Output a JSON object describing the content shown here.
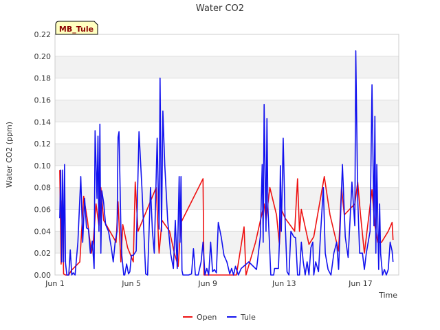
{
  "chart_data": {
    "type": "line",
    "title": "Water CO2",
    "xlabel": "Time",
    "ylabel": "Water CO2 (ppm)",
    "badge": "MB_Tule",
    "xlim": [
      1,
      19
    ],
    "ylim": [
      0,
      0.22
    ],
    "x_ticks": [
      {
        "value": 1,
        "label": "Jun 1"
      },
      {
        "value": 5,
        "label": "Jun 5"
      },
      {
        "value": 9,
        "label": "Jun 9"
      },
      {
        "value": 13,
        "label": "Jun 13"
      },
      {
        "value": 17,
        "label": "Jun 17"
      }
    ],
    "y_ticks": [
      {
        "value": 0.0,
        "label": "0.00"
      },
      {
        "value": 0.02,
        "label": "0.02"
      },
      {
        "value": 0.04,
        "label": "0.04"
      },
      {
        "value": 0.06,
        "label": "0.06"
      },
      {
        "value": 0.08,
        "label": "0.08"
      },
      {
        "value": 0.1,
        "label": "0.10"
      },
      {
        "value": 0.12,
        "label": "0.12"
      },
      {
        "value": 0.14,
        "label": "0.14"
      },
      {
        "value": 0.16,
        "label": "0.16"
      },
      {
        "value": 0.18,
        "label": "0.18"
      },
      {
        "value": 0.2,
        "label": "0.20"
      },
      {
        "value": 0.22,
        "label": "0.22"
      }
    ],
    "legend_position": "bottom-center",
    "series": [
      {
        "name": "Open",
        "color": "#ee1111",
        "points": [
          [
            1.25,
            0.096
          ],
          [
            1.32,
            0.01
          ],
          [
            1.38,
            0.068
          ],
          [
            1.45,
            0.001
          ],
          [
            1.55,
            0.0
          ],
          [
            1.72,
            0.0
          ],
          [
            1.85,
            0.004
          ],
          [
            2.3,
            0.012
          ],
          [
            2.5,
            0.072
          ],
          [
            2.7,
            0.05
          ],
          [
            2.9,
            0.02
          ],
          [
            3.0,
            0.03
          ],
          [
            3.15,
            0.065
          ],
          [
            3.3,
            0.045
          ],
          [
            3.4,
            0.08
          ],
          [
            3.55,
            0.05
          ],
          [
            4.2,
            0.03
          ],
          [
            4.3,
            0.067
          ],
          [
            4.45,
            0.012
          ],
          [
            4.55,
            0.046
          ],
          [
            4.8,
            0.025
          ],
          [
            5.1,
            0.012
          ],
          [
            5.2,
            0.085
          ],
          [
            5.35,
            0.04
          ],
          [
            6.3,
            0.08
          ],
          [
            6.45,
            0.02
          ],
          [
            6.6,
            0.05
          ],
          [
            7.0,
            0.04
          ],
          [
            7.25,
            0.02
          ],
          [
            7.45,
            0.008
          ],
          [
            7.6,
            0.048
          ],
          [
            8.75,
            0.088
          ],
          [
            8.8,
            0.0
          ],
          [
            9.05,
            0.0
          ],
          [
            10.5,
            0.0
          ],
          [
            10.9,
            0.044
          ],
          [
            11.0,
            0.0
          ],
          [
            11.5,
            0.03
          ],
          [
            11.95,
            0.065
          ],
          [
            12.05,
            0.05
          ],
          [
            12.25,
            0.08
          ],
          [
            12.6,
            0.055
          ],
          [
            12.75,
            0.028
          ],
          [
            12.85,
            0.06
          ],
          [
            13.05,
            0.052
          ],
          [
            13.55,
            0.04
          ],
          [
            13.7,
            0.088
          ],
          [
            13.8,
            0.04
          ],
          [
            13.9,
            0.06
          ],
          [
            14.3,
            0.028
          ],
          [
            14.55,
            0.035
          ],
          [
            15.1,
            0.09
          ],
          [
            15.4,
            0.055
          ],
          [
            15.85,
            0.022
          ],
          [
            16.0,
            0.08
          ],
          [
            16.15,
            0.055
          ],
          [
            16.7,
            0.065
          ],
          [
            16.85,
            0.085
          ],
          [
            17.0,
            0.055
          ],
          [
            17.2,
            0.02
          ],
          [
            17.6,
            0.078
          ],
          [
            17.75,
            0.045
          ],
          [
            17.9,
            0.03
          ],
          [
            18.1,
            0.03
          ],
          [
            18.45,
            0.04
          ],
          [
            18.65,
            0.048
          ],
          [
            18.7,
            0.032
          ]
        ]
      },
      {
        "name": "Tule",
        "color": "#1111ee",
        "points": [
          [
            1.25,
            0.052
          ],
          [
            1.3,
            0.096
          ],
          [
            1.35,
            0.012
          ],
          [
            1.4,
            0.096
          ],
          [
            1.45,
            0.012
          ],
          [
            1.5,
            0.101
          ],
          [
            1.55,
            0.011
          ],
          [
            1.62,
            0.0
          ],
          [
            1.72,
            0.0
          ],
          [
            1.8,
            0.023
          ],
          [
            1.88,
            0.0
          ],
          [
            1.95,
            0.002
          ],
          [
            2.05,
            0.0
          ],
          [
            2.2,
            0.03
          ],
          [
            2.35,
            0.09
          ],
          [
            2.45,
            0.03
          ],
          [
            2.55,
            0.07
          ],
          [
            2.65,
            0.043
          ],
          [
            2.75,
            0.042
          ],
          [
            2.85,
            0.02
          ],
          [
            2.95,
            0.031
          ],
          [
            3.05,
            0.006
          ],
          [
            3.1,
            0.132
          ],
          [
            3.2,
            0.07
          ],
          [
            3.25,
            0.127
          ],
          [
            3.3,
            0.04
          ],
          [
            3.35,
            0.138
          ],
          [
            3.4,
            0.02
          ],
          [
            3.45,
            0.077
          ],
          [
            3.55,
            0.066
          ],
          [
            3.65,
            0.046
          ],
          [
            3.8,
            0.04
          ],
          [
            3.95,
            0.025
          ],
          [
            4.05,
            0.012
          ],
          [
            4.15,
            0.03
          ],
          [
            4.25,
            0.04
          ],
          [
            4.3,
            0.126
          ],
          [
            4.35,
            0.131
          ],
          [
            4.45,
            0.044
          ],
          [
            4.5,
            0.018
          ],
          [
            4.6,
            0.0
          ],
          [
            4.65,
            0.0
          ],
          [
            4.75,
            0.01
          ],
          [
            4.85,
            0.001
          ],
          [
            4.92,
            0.003
          ],
          [
            5.0,
            0.018
          ],
          [
            5.1,
            0.018
          ],
          [
            5.25,
            0.022
          ],
          [
            5.4,
            0.131
          ],
          [
            5.55,
            0.08
          ],
          [
            5.75,
            0.001
          ],
          [
            5.85,
            0.0
          ],
          [
            6.0,
            0.08
          ],
          [
            6.1,
            0.04
          ],
          [
            6.2,
            0.02
          ],
          [
            6.35,
            0.125
          ],
          [
            6.45,
            0.042
          ],
          [
            6.5,
            0.18
          ],
          [
            6.58,
            0.04
          ],
          [
            6.65,
            0.15
          ],
          [
            6.75,
            0.1
          ],
          [
            6.9,
            0.05
          ],
          [
            7.05,
            0.02
          ],
          [
            7.2,
            0.006
          ],
          [
            7.3,
            0.05
          ],
          [
            7.4,
            0.006
          ],
          [
            7.5,
            0.09
          ],
          [
            7.55,
            0.03
          ],
          [
            7.6,
            0.09
          ],
          [
            7.65,
            0.004
          ],
          [
            7.7,
            0.0
          ],
          [
            8.0,
            0.0
          ],
          [
            8.15,
            0.001
          ],
          [
            8.25,
            0.024
          ],
          [
            8.35,
            0.0
          ],
          [
            8.5,
            0.0
          ],
          [
            8.65,
            0.012
          ],
          [
            8.75,
            0.03
          ],
          [
            8.85,
            0.0
          ],
          [
            8.95,
            0.006
          ],
          [
            9.05,
            0.0
          ],
          [
            9.15,
            0.03
          ],
          [
            9.25,
            0.003
          ],
          [
            9.35,
            0.005
          ],
          [
            9.45,
            0.002
          ],
          [
            9.55,
            0.048
          ],
          [
            9.7,
            0.035
          ],
          [
            9.85,
            0.018
          ],
          [
            10.0,
            0.012
          ],
          [
            10.15,
            0.001
          ],
          [
            10.25,
            0.006
          ],
          [
            10.35,
            0.0
          ],
          [
            10.45,
            0.008
          ],
          [
            10.6,
            0.0
          ],
          [
            10.75,
            0.006
          ],
          [
            11.15,
            0.012
          ],
          [
            11.55,
            0.005
          ],
          [
            11.75,
            0.035
          ],
          [
            11.85,
            0.101
          ],
          [
            11.9,
            0.03
          ],
          [
            11.95,
            0.156
          ],
          [
            12.05,
            0.04
          ],
          [
            12.1,
            0.143
          ],
          [
            12.15,
            0.062
          ],
          [
            12.3,
            0.0
          ],
          [
            12.45,
            0.0
          ],
          [
            12.5,
            0.006
          ],
          [
            12.7,
            0.006
          ],
          [
            12.75,
            0.03
          ],
          [
            12.8,
            0.1
          ],
          [
            12.85,
            0.04
          ],
          [
            12.95,
            0.125
          ],
          [
            13.05,
            0.05
          ],
          [
            13.15,
            0.003
          ],
          [
            13.25,
            0.0
          ],
          [
            13.35,
            0.04
          ],
          [
            13.5,
            0.035
          ],
          [
            13.6,
            0.034
          ],
          [
            13.7,
            0.0
          ],
          [
            13.8,
            0.0
          ],
          [
            13.9,
            0.03
          ],
          [
            14.0,
            0.012
          ],
          [
            14.1,
            0.0
          ],
          [
            14.2,
            0.012
          ],
          [
            14.3,
            0.0
          ],
          [
            14.4,
            0.025
          ],
          [
            14.5,
            0.03
          ],
          [
            14.55,
            0.0
          ],
          [
            14.65,
            0.012
          ],
          [
            14.8,
            0.003
          ],
          [
            14.9,
            0.036
          ],
          [
            15.05,
            0.08
          ],
          [
            15.15,
            0.02
          ],
          [
            15.3,
            0.005
          ],
          [
            15.45,
            0.0
          ],
          [
            15.6,
            0.02
          ],
          [
            15.75,
            0.03
          ],
          [
            15.85,
            0.005
          ],
          [
            16.05,
            0.101
          ],
          [
            16.2,
            0.035
          ],
          [
            16.35,
            0.016
          ],
          [
            16.55,
            0.085
          ],
          [
            16.7,
            0.045
          ],
          [
            16.75,
            0.205
          ],
          [
            16.85,
            0.07
          ],
          [
            16.95,
            0.02
          ],
          [
            17.1,
            0.02
          ],
          [
            17.2,
            0.005
          ],
          [
            17.3,
            0.02
          ],
          [
            17.5,
            0.04
          ],
          [
            17.6,
            0.174
          ],
          [
            17.7,
            0.045
          ],
          [
            17.75,
            0.145
          ],
          [
            17.8,
            0.02
          ],
          [
            17.85,
            0.101
          ],
          [
            17.95,
            0.005
          ],
          [
            18.0,
            0.065
          ],
          [
            18.05,
            0.02
          ],
          [
            18.15,
            0.0
          ],
          [
            18.25,
            0.005
          ],
          [
            18.35,
            0.0
          ],
          [
            18.45,
            0.005
          ],
          [
            18.55,
            0.03
          ],
          [
            18.65,
            0.022
          ],
          [
            18.7,
            0.012
          ]
        ]
      }
    ]
  }
}
